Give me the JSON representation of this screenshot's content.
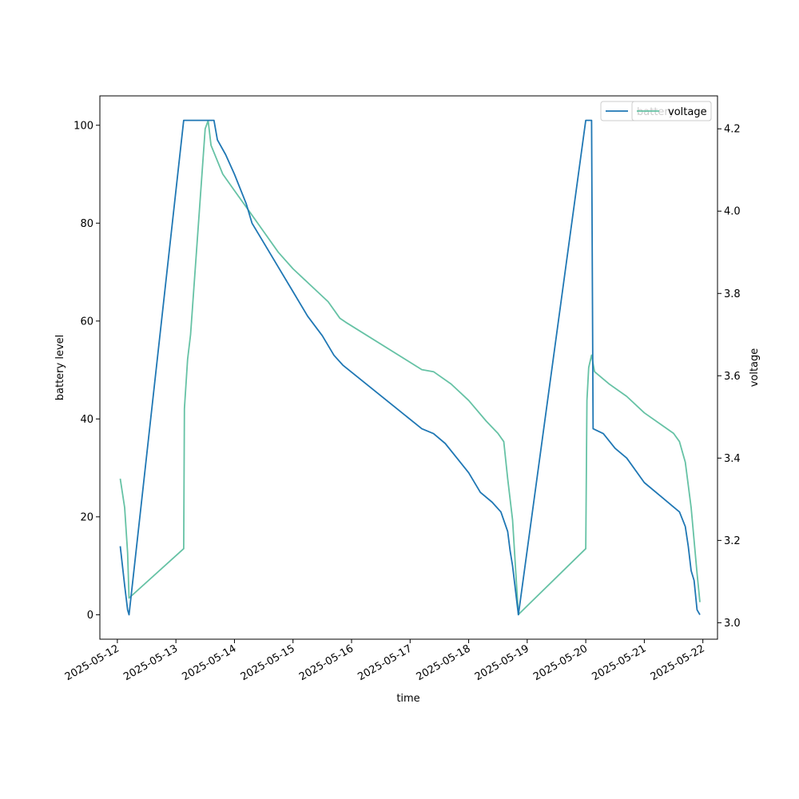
{
  "chart_data": {
    "type": "line",
    "xlabel": "time",
    "ylabel_left": "battery level",
    "ylabel_right": "voltage",
    "xlim": [
      "2025-05-11T16:50",
      "2025-05-22T06:00"
    ],
    "ylim_left": [
      -5,
      106
    ],
    "ylim_right": [
      2.96,
      4.28
    ],
    "x_ticks": [
      "2025-05-12",
      "2025-05-13",
      "2025-05-14",
      "2025-05-15",
      "2025-05-16",
      "2025-05-17",
      "2025-05-18",
      "2025-05-19",
      "2025-05-20",
      "2025-05-21",
      "2025-05-22"
    ],
    "y_ticks_left": [
      0,
      20,
      40,
      60,
      80,
      100
    ],
    "y_ticks_right": [
      3.0,
      3.2,
      3.4,
      3.6,
      3.8,
      4.0,
      4.2
    ],
    "grid": false,
    "legend_placement": "top-right",
    "legend_entries": [
      "battery",
      "voltage"
    ],
    "series": [
      {
        "name": "battery",
        "axis": "left",
        "color": "#1f77b4",
        "points": [
          [
            "2025-05-12T01:12",
            14
          ],
          [
            "2025-05-12T03:00",
            6
          ],
          [
            "2025-05-12T04:12",
            1
          ],
          [
            "2025-05-12T04:48",
            0
          ],
          [
            "2025-05-13T03:12",
            101
          ],
          [
            "2025-05-13T15:36",
            101
          ],
          [
            "2025-05-13T17:00",
            97
          ],
          [
            "2025-05-13T20:24",
            94
          ],
          [
            "2025-05-14T00:00",
            90
          ],
          [
            "2025-05-14T04:48",
            84
          ],
          [
            "2025-05-14T07:12",
            80
          ],
          [
            "2025-05-14T12:00",
            76
          ],
          [
            "2025-05-14T18:00",
            71
          ],
          [
            "2025-05-15T00:00",
            66
          ],
          [
            "2025-05-15T06:00",
            61
          ],
          [
            "2025-05-15T12:00",
            57
          ],
          [
            "2025-05-15T16:48",
            53
          ],
          [
            "2025-05-15T20:24",
            51
          ],
          [
            "2025-05-17T04:48",
            38
          ],
          [
            "2025-05-17T09:36",
            37
          ],
          [
            "2025-05-17T14:24",
            35
          ],
          [
            "2025-05-17T19:12",
            32
          ],
          [
            "2025-05-18T00:00",
            29
          ],
          [
            "2025-05-18T04:48",
            25
          ],
          [
            "2025-05-18T09:36",
            23
          ],
          [
            "2025-05-18T13:12",
            21
          ],
          [
            "2025-05-18T16:00",
            17
          ],
          [
            "2025-05-18T17:00",
            13
          ],
          [
            "2025-05-18T18:00",
            10
          ],
          [
            "2025-05-18T20:24",
            0
          ],
          [
            "2025-05-20T00:00",
            101
          ],
          [
            "2025-05-20T02:24",
            101
          ],
          [
            "2025-05-20T03:00",
            38
          ],
          [
            "2025-05-20T07:12",
            37
          ],
          [
            "2025-05-20T12:00",
            34
          ],
          [
            "2025-05-20T16:48",
            32
          ],
          [
            "2025-05-21T00:00",
            27
          ],
          [
            "2025-05-21T07:12",
            24
          ],
          [
            "2025-05-21T12:00",
            22
          ],
          [
            "2025-05-21T14:24",
            21
          ],
          [
            "2025-05-21T16:48",
            18
          ],
          [
            "2025-05-21T18:00",
            14
          ],
          [
            "2025-05-21T19:12",
            9
          ],
          [
            "2025-05-21T20:24",
            7
          ],
          [
            "2025-05-21T21:36",
            1
          ],
          [
            "2025-05-21T22:48",
            0
          ]
        ]
      },
      {
        "name": "voltage",
        "axis": "right",
        "color": "#66c2a5",
        "points": [
          [
            "2025-05-12T01:12",
            3.35
          ],
          [
            "2025-05-12T03:00",
            3.28
          ],
          [
            "2025-05-12T04:12",
            3.17
          ],
          [
            "2025-05-12T04:48",
            3.06
          ],
          [
            "2025-05-13T03:12",
            3.18
          ],
          [
            "2025-05-13T03:30",
            3.52
          ],
          [
            "2025-05-13T04:48",
            3.64
          ],
          [
            "2025-05-13T06:00",
            3.7
          ],
          [
            "2025-05-13T09:36",
            4.0
          ],
          [
            "2025-05-13T12:00",
            4.2
          ],
          [
            "2025-05-13T13:12",
            4.22
          ],
          [
            "2025-05-13T14:24",
            4.16
          ],
          [
            "2025-05-13T19:12",
            4.09
          ],
          [
            "2025-05-14T00:00",
            4.05
          ],
          [
            "2025-05-14T06:00",
            4.0
          ],
          [
            "2025-05-14T12:00",
            3.95
          ],
          [
            "2025-05-14T18:00",
            3.9
          ],
          [
            "2025-05-15T00:00",
            3.86
          ],
          [
            "2025-05-15T07:12",
            3.82
          ],
          [
            "2025-05-15T14:24",
            3.78
          ],
          [
            "2025-05-15T19:12",
            3.74
          ],
          [
            "2025-05-15T21:36",
            3.73
          ],
          [
            "2025-05-17T04:48",
            3.615
          ],
          [
            "2025-05-17T09:36",
            3.61
          ],
          [
            "2025-05-17T16:48",
            3.58
          ],
          [
            "2025-05-18T00:00",
            3.54
          ],
          [
            "2025-05-18T07:12",
            3.49
          ],
          [
            "2025-05-18T12:00",
            3.46
          ],
          [
            "2025-05-18T14:24",
            3.44
          ],
          [
            "2025-05-18T16:00",
            3.35
          ],
          [
            "2025-05-18T18:00",
            3.25
          ],
          [
            "2025-05-18T20:24",
            3.02
          ],
          [
            "2025-05-20T00:00",
            3.18
          ],
          [
            "2025-05-20T00:30",
            3.54
          ],
          [
            "2025-05-20T01:12",
            3.62
          ],
          [
            "2025-05-20T02:24",
            3.65
          ],
          [
            "2025-05-20T03:36",
            3.61
          ],
          [
            "2025-05-20T09:36",
            3.58
          ],
          [
            "2025-05-20T16:48",
            3.55
          ],
          [
            "2025-05-21T00:00",
            3.51
          ],
          [
            "2025-05-21T07:12",
            3.48
          ],
          [
            "2025-05-21T12:00",
            3.46
          ],
          [
            "2025-05-21T14:24",
            3.44
          ],
          [
            "2025-05-21T16:48",
            3.39
          ],
          [
            "2025-05-21T19:12",
            3.28
          ],
          [
            "2025-05-21T21:36",
            3.12
          ],
          [
            "2025-05-21T22:48",
            3.05
          ]
        ]
      }
    ]
  }
}
